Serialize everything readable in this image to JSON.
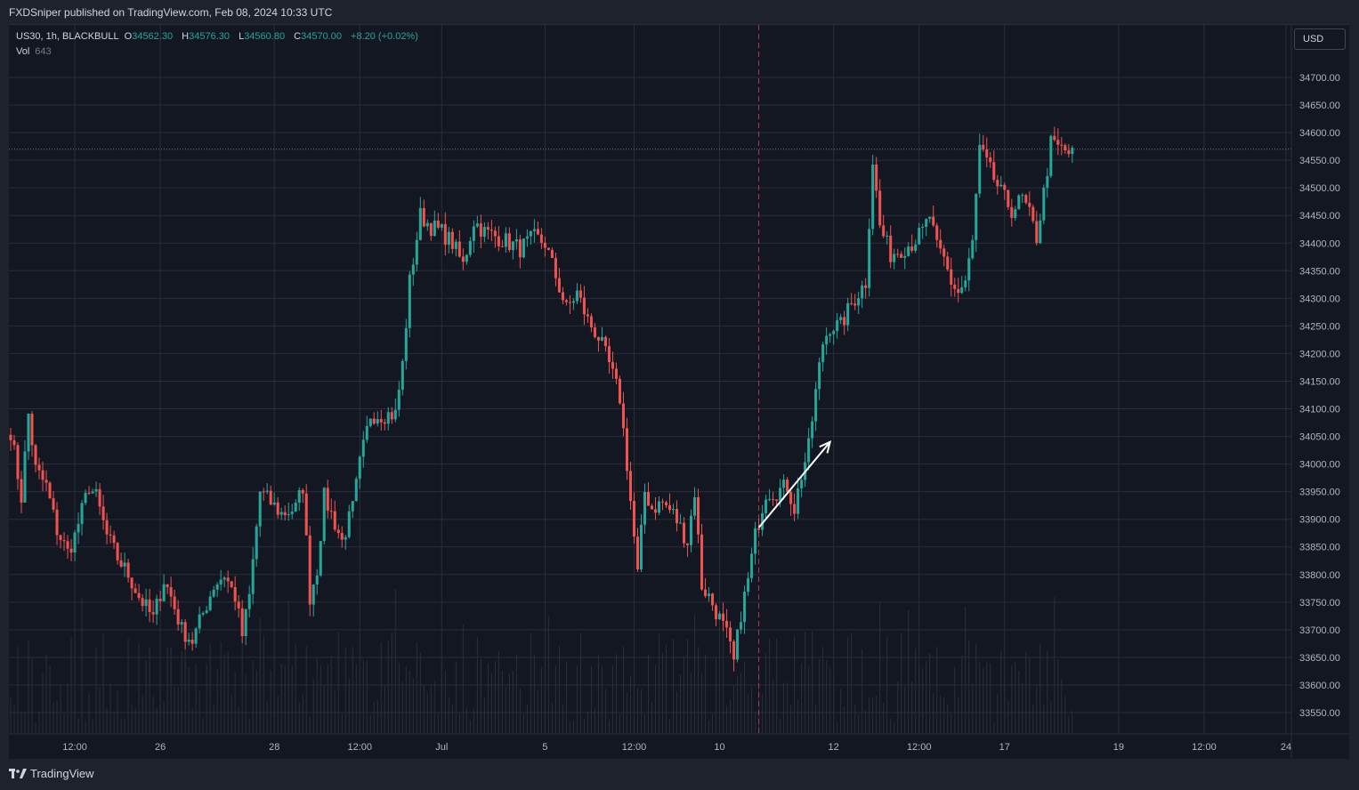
{
  "header": {
    "publisher": "FXDSniper published on TradingView.com, Feb 08, 2024 10:33 UTC"
  },
  "legend": {
    "symbol": "US30, 1h, BLACKBULL",
    "open_label": "O",
    "open": "34562.30",
    "high_label": "H",
    "high": "34576.30",
    "low_label": "L",
    "low": "34560.80",
    "close_label": "C",
    "close": "34570.00",
    "change": "+8.20 (+0.02%)",
    "vol_label": "Vol",
    "vol_value": "643"
  },
  "currency": "USD",
  "footer": {
    "brand": "TradingView"
  },
  "colors": {
    "background": "#131722",
    "frame": "#1e222d",
    "grid": "#2a2e39",
    "up": "#26a69a",
    "down": "#ef5350",
    "marker": "#b2394b",
    "arrow": "#ffffff",
    "axis_text": "#b2b5be"
  },
  "chart_data": {
    "type": "candlestick",
    "ylim": [
      33525,
      34725
    ],
    "y_ticks": [
      "33550.00",
      "33600.00",
      "33650.00",
      "33700.00",
      "33750.00",
      "33800.00",
      "33850.00",
      "33900.00",
      "33950.00",
      "34000.00",
      "34050.00",
      "34100.00",
      "34150.00",
      "34200.00",
      "34250.00",
      "34300.00",
      "34350.00",
      "34400.00",
      "34450.00",
      "34500.00",
      "34550.00",
      "34600.00",
      "34650.00",
      "34700.00"
    ],
    "x_ticks": [
      {
        "label": "12:00",
        "bar": 18
      },
      {
        "label": "26",
        "bar": 42
      },
      {
        "label": "28",
        "bar": 74
      },
      {
        "label": "12:00",
        "bar": 98
      },
      {
        "label": "Jul",
        "bar": 121
      },
      {
        "label": "5",
        "bar": 150
      },
      {
        "label": "12:00",
        "bar": 175
      },
      {
        "label": "10",
        "bar": 199
      },
      {
        "label": "12",
        "bar": 231
      },
      {
        "label": "12:00",
        "bar": 255
      },
      {
        "label": "17",
        "bar": 279
      },
      {
        "label": "19",
        "bar": 311
      },
      {
        "label": "12:00",
        "bar": 335
      },
      {
        "label": "24",
        "bar": 358
      }
    ],
    "total_slots": 360,
    "current_price": 34570,
    "marker_bar": 210,
    "arrow": {
      "from": {
        "bar": 210,
        "price": 33885
      },
      "to": {
        "bar": 230,
        "price": 34040
      }
    },
    "anchors": [
      [
        0,
        34060
      ],
      [
        3,
        33940
      ],
      [
        5,
        34090
      ],
      [
        7,
        33990
      ],
      [
        10,
        33960
      ],
      [
        13,
        33880
      ],
      [
        16,
        33840
      ],
      [
        18,
        33870
      ],
      [
        22,
        33960
      ],
      [
        24,
        33940
      ],
      [
        27,
        33870
      ],
      [
        30,
        33830
      ],
      [
        33,
        33800
      ],
      [
        36,
        33760
      ],
      [
        40,
        33720
      ],
      [
        43,
        33790
      ],
      [
        45,
        33760
      ],
      [
        48,
        33700
      ],
      [
        51,
        33680
      ],
      [
        54,
        33730
      ],
      [
        57,
        33780
      ],
      [
        60,
        33800
      ],
      [
        63,
        33760
      ],
      [
        65,
        33690
      ],
      [
        67,
        33760
      ],
      [
        70,
        33950
      ],
      [
        73,
        33930
      ],
      [
        76,
        33910
      ],
      [
        80,
        33920
      ],
      [
        82,
        33960
      ],
      [
        84,
        33760
      ],
      [
        86,
        33810
      ],
      [
        88,
        33940
      ],
      [
        90,
        33910
      ],
      [
        93,
        33860
      ],
      [
        96,
        33920
      ],
      [
        98,
        34000
      ],
      [
        101,
        34090
      ],
      [
        105,
        34090
      ],
      [
        108,
        34090
      ],
      [
        110,
        34180
      ],
      [
        112,
        34330
      ],
      [
        115,
        34450
      ],
      [
        118,
        34430
      ],
      [
        121,
        34420
      ],
      [
        124,
        34400
      ],
      [
        127,
        34360
      ],
      [
        130,
        34440
      ],
      [
        133,
        34420
      ],
      [
        137,
        34410
      ],
      [
        140,
        34400
      ],
      [
        143,
        34390
      ],
      [
        147,
        34410
      ],
      [
        150,
        34400
      ],
      [
        153,
        34340
      ],
      [
        156,
        34280
      ],
      [
        159,
        34310
      ],
      [
        162,
        34260
      ],
      [
        165,
        34230
      ],
      [
        168,
        34180
      ],
      [
        171,
        34120
      ],
      [
        173,
        34000
      ],
      [
        176,
        33800
      ],
      [
        178,
        33950
      ],
      [
        180,
        33920
      ],
      [
        183,
        33930
      ],
      [
        186,
        33910
      ],
      [
        190,
        33860
      ],
      [
        192,
        33950
      ],
      [
        194,
        33780
      ],
      [
        196,
        33760
      ],
      [
        199,
        33720
      ],
      [
        201,
        33690
      ],
      [
        203,
        33640
      ],
      [
        205,
        33730
      ],
      [
        207,
        33790
      ],
      [
        209,
        33870
      ],
      [
        212,
        33950
      ],
      [
        215,
        33950
      ],
      [
        218,
        33960
      ],
      [
        220,
        33920
      ],
      [
        222,
        33980
      ],
      [
        224,
        34030
      ],
      [
        226,
        34130
      ],
      [
        228,
        34220
      ],
      [
        230,
        34250
      ],
      [
        233,
        34250
      ],
      [
        236,
        34290
      ],
      [
        238,
        34310
      ],
      [
        240,
        34330
      ],
      [
        242,
        34550
      ],
      [
        244,
        34430
      ],
      [
        247,
        34380
      ],
      [
        250,
        34390
      ],
      [
        253,
        34400
      ],
      [
        256,
        34420
      ],
      [
        258,
        34450
      ],
      [
        260,
        34390
      ],
      [
        262,
        34370
      ],
      [
        264,
        34330
      ],
      [
        266,
        34310
      ],
      [
        268,
        34330
      ],
      [
        270,
        34400
      ],
      [
        272,
        34570
      ],
      [
        275,
        34530
      ],
      [
        278,
        34490
      ],
      [
        281,
        34460
      ],
      [
        284,
        34480
      ],
      [
        286,
        34450
      ],
      [
        288,
        34410
      ],
      [
        290,
        34490
      ],
      [
        292,
        34580
      ],
      [
        295,
        34570
      ],
      [
        298,
        34560
      ]
    ]
  }
}
